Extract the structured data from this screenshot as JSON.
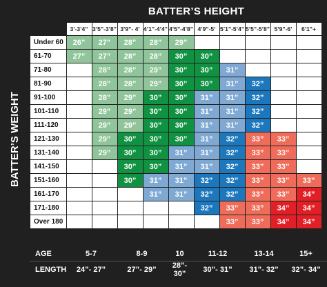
{
  "titles": {
    "height": "BATTER’S HEIGHT",
    "weight": "BATTER’S WEIGHT"
  },
  "heights": [
    "3’-3’4”",
    "3’5”-3’8”",
    "3’9”- 4’",
    "4’1”-4’4”",
    "4’5”-4’8”",
    "4’9”-5’",
    "5’1”-5’4”",
    "5’5”-5’8”",
    "5’9”-6’",
    "6’1”+"
  ],
  "rows": [
    {
      "weight": "Under 60",
      "cells": [
        {
          "v": "26”",
          "c": "light"
        },
        {
          "v": "27”",
          "c": "light"
        },
        {
          "v": "28”",
          "c": "light"
        },
        {
          "v": "28”",
          "c": "light"
        },
        {
          "v": "29”",
          "c": "light"
        },
        {
          "v": "",
          "c": "white"
        },
        {
          "v": "",
          "c": "white"
        },
        {
          "v": "",
          "c": "white"
        },
        {
          "v": "",
          "c": "white"
        },
        {
          "v": "",
          "c": "white"
        }
      ]
    },
    {
      "weight": "61-70",
      "cells": [
        {
          "v": "27”",
          "c": "light"
        },
        {
          "v": "27”",
          "c": "light"
        },
        {
          "v": "28”",
          "c": "light"
        },
        {
          "v": "28”",
          "c": "light"
        },
        {
          "v": "30”",
          "c": "green"
        },
        {
          "v": "30”",
          "c": "green"
        },
        {
          "v": "",
          "c": "white"
        },
        {
          "v": "",
          "c": "white"
        },
        {
          "v": "",
          "c": "white"
        },
        {
          "v": "",
          "c": "white"
        }
      ]
    },
    {
      "weight": "71-80",
      "cells": [
        {
          "v": "",
          "c": "white"
        },
        {
          "v": "28”",
          "c": "light"
        },
        {
          "v": "28”",
          "c": "light"
        },
        {
          "v": "29”",
          "c": "light"
        },
        {
          "v": "30”",
          "c": "green"
        },
        {
          "v": "30”",
          "c": "green"
        },
        {
          "v": "31”",
          "c": "blue"
        },
        {
          "v": "",
          "c": "white"
        },
        {
          "v": "",
          "c": "white"
        },
        {
          "v": "",
          "c": "white"
        }
      ]
    },
    {
      "weight": "81-90",
      "cells": [
        {
          "v": "",
          "c": "white"
        },
        {
          "v": "28”",
          "c": "light"
        },
        {
          "v": "28”",
          "c": "light"
        },
        {
          "v": "29”",
          "c": "light"
        },
        {
          "v": "30”",
          "c": "green"
        },
        {
          "v": "30”",
          "c": "green"
        },
        {
          "v": "31”",
          "c": "blue"
        },
        {
          "v": "32”",
          "c": "dblue"
        },
        {
          "v": "",
          "c": "white"
        },
        {
          "v": "",
          "c": "white"
        }
      ]
    },
    {
      "weight": "91-100",
      "cells": [
        {
          "v": "",
          "c": "white"
        },
        {
          "v": "28”",
          "c": "light"
        },
        {
          "v": "29”",
          "c": "light"
        },
        {
          "v": "30”",
          "c": "green"
        },
        {
          "v": "30”",
          "c": "green"
        },
        {
          "v": "31”",
          "c": "blue"
        },
        {
          "v": "31”",
          "c": "blue"
        },
        {
          "v": "32”",
          "c": "dblue"
        },
        {
          "v": "",
          "c": "white"
        },
        {
          "v": "",
          "c": "white"
        }
      ]
    },
    {
      "weight": "101-110",
      "cells": [
        {
          "v": "",
          "c": "white"
        },
        {
          "v": "29”",
          "c": "light"
        },
        {
          "v": "29”",
          "c": "light"
        },
        {
          "v": "30”",
          "c": "green"
        },
        {
          "v": "30”",
          "c": "green"
        },
        {
          "v": "31”",
          "c": "blue"
        },
        {
          "v": "31”",
          "c": "blue"
        },
        {
          "v": "32”",
          "c": "dblue"
        },
        {
          "v": "",
          "c": "white"
        },
        {
          "v": "",
          "c": "white"
        }
      ]
    },
    {
      "weight": "111-120",
      "cells": [
        {
          "v": "",
          "c": "white"
        },
        {
          "v": "29”",
          "c": "light"
        },
        {
          "v": "29”",
          "c": "light"
        },
        {
          "v": "30”",
          "c": "green"
        },
        {
          "v": "30”",
          "c": "green"
        },
        {
          "v": "31”",
          "c": "blue"
        },
        {
          "v": "31”",
          "c": "blue"
        },
        {
          "v": "32”",
          "c": "dblue"
        },
        {
          "v": "",
          "c": "white"
        },
        {
          "v": "",
          "c": "white"
        }
      ]
    },
    {
      "weight": "121-130",
      "cells": [
        {
          "v": "",
          "c": "white"
        },
        {
          "v": "29”",
          "c": "light"
        },
        {
          "v": "30”",
          "c": "green"
        },
        {
          "v": "30”",
          "c": "green"
        },
        {
          "v": "30”",
          "c": "green"
        },
        {
          "v": "31”",
          "c": "blue"
        },
        {
          "v": "32”",
          "c": "dblue"
        },
        {
          "v": "33”",
          "c": "salmon"
        },
        {
          "v": "33”",
          "c": "salmon"
        },
        {
          "v": "",
          "c": "white"
        }
      ]
    },
    {
      "weight": "131-140",
      "cells": [
        {
          "v": "",
          "c": "white"
        },
        {
          "v": "29”",
          "c": "light"
        },
        {
          "v": "30”",
          "c": "green"
        },
        {
          "v": "30”",
          "c": "green"
        },
        {
          "v": "31”",
          "c": "blue"
        },
        {
          "v": "31”",
          "c": "blue"
        },
        {
          "v": "32”",
          "c": "dblue"
        },
        {
          "v": "33”",
          "c": "salmon"
        },
        {
          "v": "33”",
          "c": "salmon"
        },
        {
          "v": "",
          "c": "white"
        }
      ]
    },
    {
      "weight": "141-150",
      "cells": [
        {
          "v": "",
          "c": "white"
        },
        {
          "v": "",
          "c": "white"
        },
        {
          "v": "30”",
          "c": "green"
        },
        {
          "v": "30”",
          "c": "green"
        },
        {
          "v": "31”",
          "c": "blue"
        },
        {
          "v": "31”",
          "c": "blue"
        },
        {
          "v": "32”",
          "c": "dblue"
        },
        {
          "v": "33”",
          "c": "salmon"
        },
        {
          "v": "33”",
          "c": "salmon"
        },
        {
          "v": "",
          "c": "white"
        }
      ]
    },
    {
      "weight": "151-160",
      "cells": [
        {
          "v": "",
          "c": "white"
        },
        {
          "v": "",
          "c": "white"
        },
        {
          "v": "30”",
          "c": "green"
        },
        {
          "v": "31”",
          "c": "blue"
        },
        {
          "v": "31”",
          "c": "blue"
        },
        {
          "v": "32”",
          "c": "dblue"
        },
        {
          "v": "32”",
          "c": "dblue"
        },
        {
          "v": "33”",
          "c": "salmon"
        },
        {
          "v": "33”",
          "c": "salmon"
        },
        {
          "v": "33”",
          "c": "salmon"
        }
      ]
    },
    {
      "weight": "161-170",
      "cells": [
        {
          "v": "",
          "c": "white"
        },
        {
          "v": "",
          "c": "white"
        },
        {
          "v": "",
          "c": "white"
        },
        {
          "v": "31”",
          "c": "blue"
        },
        {
          "v": "31”",
          "c": "blue"
        },
        {
          "v": "32”",
          "c": "dblue"
        },
        {
          "v": "32”",
          "c": "dblue"
        },
        {
          "v": "33”",
          "c": "salmon"
        },
        {
          "v": "33”",
          "c": "salmon"
        },
        {
          "v": "34”",
          "c": "red"
        }
      ]
    },
    {
      "weight": "171-180",
      "cells": [
        {
          "v": "",
          "c": "white"
        },
        {
          "v": "",
          "c": "white"
        },
        {
          "v": "",
          "c": "white"
        },
        {
          "v": "",
          "c": "white"
        },
        {
          "v": "",
          "c": "white"
        },
        {
          "v": "32”",
          "c": "dblue"
        },
        {
          "v": "33”",
          "c": "salmon"
        },
        {
          "v": "33”",
          "c": "salmon"
        },
        {
          "v": "34”",
          "c": "red"
        },
        {
          "v": "34”",
          "c": "red"
        }
      ]
    },
    {
      "weight": "Over 180",
      "cells": [
        {
          "v": "",
          "c": "white"
        },
        {
          "v": "",
          "c": "white"
        },
        {
          "v": "",
          "c": "white"
        },
        {
          "v": "",
          "c": "white"
        },
        {
          "v": "",
          "c": "white"
        },
        {
          "v": "",
          "c": "white"
        },
        {
          "v": "33”",
          "c": "salmon"
        },
        {
          "v": "33”",
          "c": "salmon"
        },
        {
          "v": "34”",
          "c": "red"
        },
        {
          "v": "34”",
          "c": "red"
        }
      ]
    }
  ],
  "footer": {
    "age_label": "AGE",
    "length_label": "LENGTH",
    "groups": [
      {
        "age": "5-7",
        "length": "24”- 27”"
      },
      {
        "age": "8-9",
        "length": "27”- 29”"
      },
      {
        "age": "10",
        "length": "28”- 30”"
      },
      {
        "age": "11-12",
        "length": "30”- 31”"
      },
      {
        "age": "13-14",
        "length": "31”- 32”"
      },
      {
        "age": "15+",
        "length": "32”- 34”"
      }
    ]
  },
  "colors": {
    "light_green": "#90c49a",
    "green": "#119142",
    "light_blue": "#7fa9d3",
    "blue": "#1d77bd",
    "salmon": "#ee6c59",
    "red": "#e11f26",
    "background": "#202020"
  }
}
